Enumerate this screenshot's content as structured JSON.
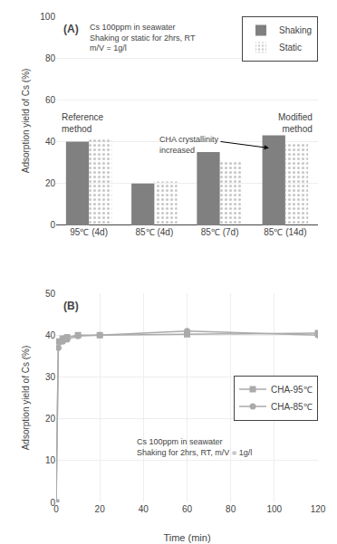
{
  "chart_data": [
    {
      "type": "bar",
      "categories": [
        "95℃ (4d)",
        "85℃ (4d)",
        "85℃ (7d)",
        "85℃ (14d)"
      ],
      "series": [
        {
          "name": "Shaking",
          "color": "#808080",
          "values": [
            40,
            20,
            35,
            43
          ]
        },
        {
          "name": "Static",
          "color": "#c8c8c8",
          "values": [
            42,
            21,
            31,
            39
          ]
        }
      ],
      "ylabel": "Adsorption yield of Cs (%)",
      "ylim": [
        0,
        100
      ],
      "yticks": [
        0,
        20,
        40,
        60,
        80,
        100
      ],
      "legend": "upper right",
      "annotations": [
        "(A)",
        "Cs 100ppm in seawater\nShaking or static for 2hrs, RT\nm/V = 1g/l",
        "Reference\nmethod",
        "Modified\nmethod",
        "CHA crystallinity\nincreased"
      ]
    },
    {
      "type": "line",
      "x": [
        0,
        1,
        3,
        5,
        10,
        20,
        60,
        120
      ],
      "series": [
        {
          "name": "CHA-95℃",
          "color": "#aaaaaa",
          "marker": "square",
          "values": [
            0,
            38.5,
            39.2,
            39.5,
            40.0,
            40.0,
            40.2,
            40.5
          ]
        },
        {
          "name": "CHA-85℃",
          "color": "#aaaaaa",
          "marker": "circle",
          "values": [
            0,
            37.0,
            38.5,
            39.0,
            39.8,
            40.0,
            41.0,
            40.0
          ]
        }
      ],
      "xlabel": "Time (min)",
      "ylabel": "Adsorption yield of Cs (%)",
      "xlim": [
        0,
        120
      ],
      "ylim": [
        0,
        50
      ],
      "xticks": [
        0,
        20,
        40,
        60,
        80,
        100,
        120
      ],
      "yticks": [
        0,
        10,
        20,
        30,
        40,
        50
      ],
      "legend": "center right",
      "annotations": [
        "(B)",
        "Cs 100ppm in seawater\nShaking for 2hrs, RT, m/V = 1g/l"
      ]
    }
  ]
}
